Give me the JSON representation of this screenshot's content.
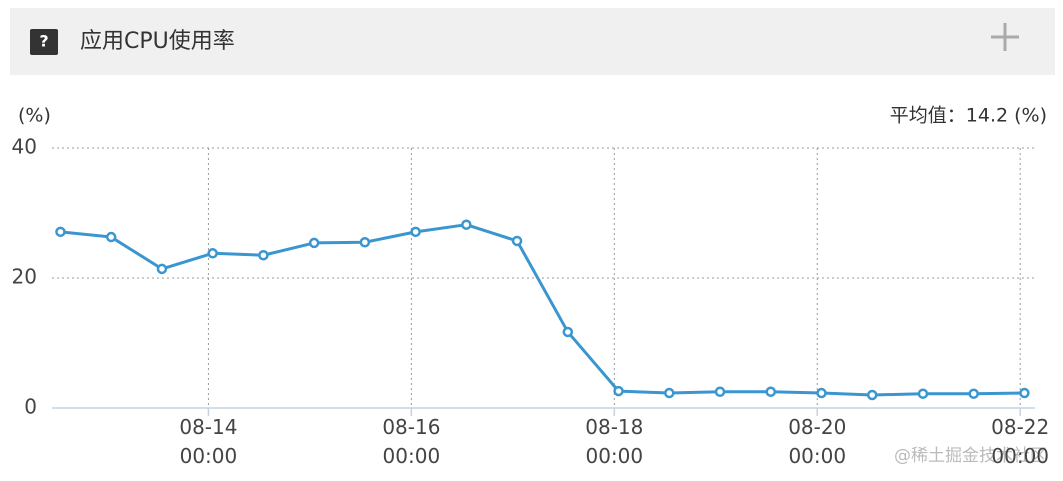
{
  "header": {
    "icon": "?",
    "title": "应用CPU使用率"
  },
  "chart_data": {
    "type": "line",
    "y_label": "(%)",
    "annotation": "平均值：14.2 (%)",
    "x": [
      "08-12 13:00",
      "08-13 01:00",
      "08-13 13:00",
      "08-14 01:00",
      "08-14 13:00",
      "08-15 01:00",
      "08-15 13:00",
      "08-16 01:00",
      "08-16 13:00",
      "08-17 01:00",
      "08-17 13:00",
      "08-18 01:00",
      "08-18 13:00",
      "08-19 01:00",
      "08-19 13:00",
      "08-20 01:00",
      "08-20 13:00",
      "08-21 01:00",
      "08-21 13:00",
      "08-22 01:00"
    ],
    "series": [
      {
        "color": "#3a96d0",
        "values": [
          27.1,
          26.3,
          21.4,
          23.8,
          23.5,
          25.4,
          25.5,
          27.1,
          28.2,
          25.7,
          11.7,
          2.6,
          2.3,
          2.5,
          2.5,
          2.3,
          2.0,
          2.2,
          2.2,
          2.3
        ]
      }
    ],
    "xlim": [
      "08-12 11:00",
      "08-22 03:30"
    ],
    "xticks": [
      "08-14 00:00",
      "08-16 00:00",
      "08-18 00:00",
      "08-20 00:00",
      "08-22 00:00"
    ],
    "ylim": [
      0,
      40
    ],
    "yticks": [
      0,
      20,
      40
    ],
    "grid": true
  },
  "watermark": "@稀土掘金技术社区"
}
